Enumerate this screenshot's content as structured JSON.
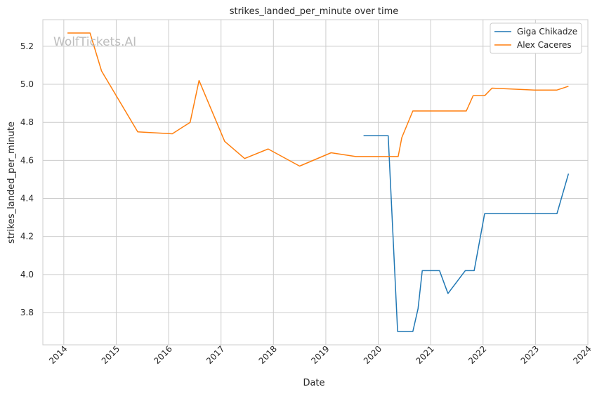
{
  "chart_data": {
    "type": "line",
    "title": "strikes_landed_per_minute over time",
    "xlabel": "Date",
    "ylabel": "strikes_landed_per_minute",
    "watermark": "WolfTickets.AI",
    "xlim": [
      2013.6,
      2024.0
    ],
    "ylim": [
      3.63,
      5.34
    ],
    "x_ticks": [
      2014,
      2015,
      2016,
      2017,
      2018,
      2019,
      2020,
      2021,
      2022,
      2023,
      2024
    ],
    "x_tick_labels": [
      "2014",
      "2015",
      "2016",
      "2017",
      "2018",
      "2019",
      "2020",
      "2021",
      "2022",
      "2023",
      "2024"
    ],
    "y_ticks": [
      3.8,
      4.0,
      4.2,
      4.4,
      4.6,
      4.8,
      5.0,
      5.2
    ],
    "y_tick_labels": [
      "3.8",
      "4.0",
      "4.2",
      "4.4",
      "4.6",
      "4.8",
      "5.0",
      "5.2"
    ],
    "grid": true,
    "legend_position": "top-right",
    "series": [
      {
        "name": "Giga Chikadze",
        "color": "#1f77b4",
        "x": [
          2019.72,
          2020.19,
          2020.37,
          2020.66,
          2020.76,
          2020.84,
          2021.17,
          2021.33,
          2021.66,
          2021.83,
          2022.03,
          2022.1,
          2023.41,
          2023.63
        ],
        "y": [
          4.73,
          4.73,
          3.7,
          3.7,
          3.82,
          4.02,
          4.02,
          3.9,
          4.02,
          4.02,
          4.32,
          4.32,
          4.32,
          4.53
        ]
      },
      {
        "name": "Alex Caceres",
        "color": "#ff7f0e",
        "x": [
          2014.07,
          2014.5,
          2014.72,
          2015.41,
          2016.07,
          2016.41,
          2016.58,
          2017.07,
          2017.45,
          2017.9,
          2018.5,
          2019.1,
          2019.57,
          2019.97,
          2020.38,
          2020.45,
          2020.66,
          2021.2,
          2021.68,
          2021.81,
          2022.03,
          2022.17,
          2022.98,
          2023.41,
          2023.63
        ],
        "y": [
          5.27,
          5.27,
          5.07,
          4.75,
          4.74,
          4.8,
          5.02,
          4.7,
          4.61,
          4.66,
          4.57,
          4.64,
          4.62,
          4.62,
          4.62,
          4.72,
          4.86,
          4.86,
          4.86,
          4.94,
          4.94,
          4.98,
          4.97,
          4.97,
          4.99
        ]
      }
    ]
  }
}
